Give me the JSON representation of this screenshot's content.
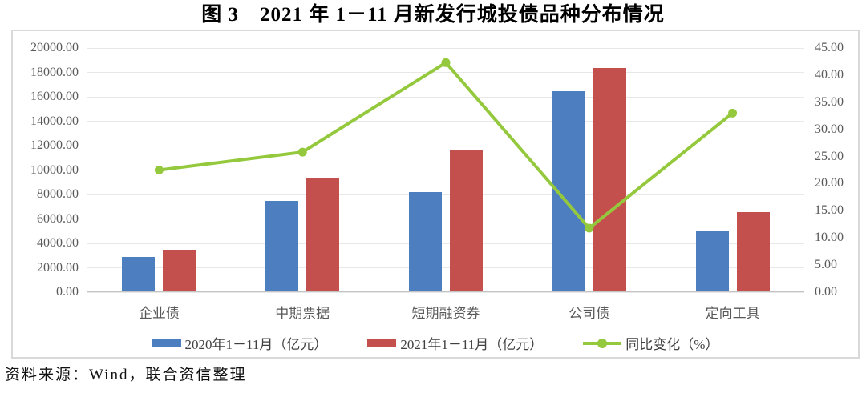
{
  "title": "图 3　2021 年 1－11 月新发行城投债品种分布情况",
  "source_note": "资料来源：Wind，联合资信整理",
  "colors": {
    "bar_2020": "#4C7EC0",
    "bar_2021": "#C4504D",
    "line_yoy": "#95C93D",
    "gridline": "#E8E8E8",
    "chart_border": "#D9D9D9",
    "axis_text": "#595959"
  },
  "chart_data": {
    "type": "combo: bar + line",
    "title": "图 3　2021 年 1－11 月新发行城投债品种分布情况",
    "categories": [
      "企业债",
      "中期票据",
      "短期融资券",
      "公司债",
      "定向工具"
    ],
    "series": [
      {
        "name": "2020年1－11月（亿元）",
        "type": "bar",
        "axis": "left",
        "color": "#4C7EC0",
        "values": [
          2800,
          7400,
          8150,
          16400,
          4900
        ]
      },
      {
        "name": "2021年1－11月（亿元）",
        "type": "bar",
        "axis": "left",
        "color": "#C4504D",
        "values": [
          3400,
          9270,
          11600,
          18300,
          6500
        ]
      },
      {
        "name": "同比变化（%）",
        "type": "line",
        "axis": "right",
        "color": "#95C93D",
        "values": [
          22.5,
          25.8,
          42.3,
          11.8,
          33.0
        ]
      }
    ],
    "left_axis": {
      "min": 0,
      "max": 20000,
      "step": 2000,
      "tick_labels": [
        "20000.00",
        "18000.00",
        "16000.00",
        "14000.00",
        "12000.00",
        "10000.00",
        "8000.00",
        "6000.00",
        "4000.00",
        "2000.00",
        "0.00"
      ]
    },
    "right_axis": {
      "min": 0,
      "max": 45,
      "step": 5,
      "tick_labels": [
        "45.00",
        "40.00",
        "35.00",
        "30.00",
        "25.00",
        "20.00",
        "15.00",
        "10.00",
        "5.00",
        "0.00"
      ]
    },
    "grid": "horizontal",
    "legend_position": "bottom"
  }
}
